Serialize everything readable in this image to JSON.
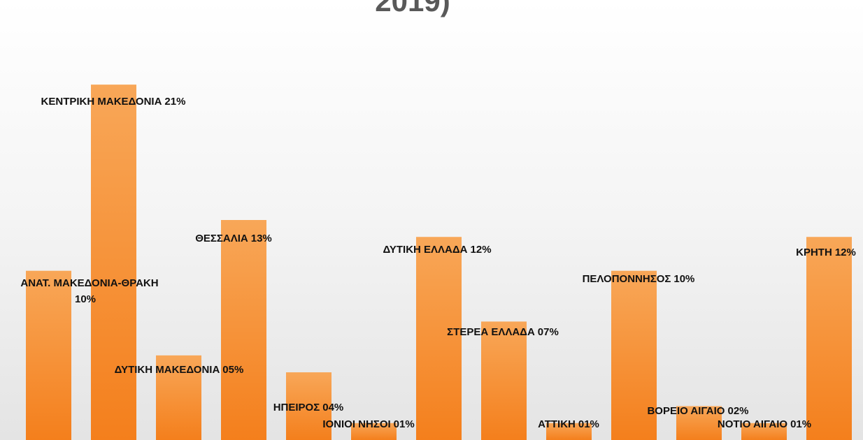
{
  "chart_data": {
    "type": "bar",
    "title": "2019)",
    "categories": [
      "ΑΝΑΤ. ΜΑΚΕΔΟΝΙΑ-ΘΡΑΚΗ",
      "ΚΕΝΤΡΙΚΗ ΜΑΚΕΔΟΝΙΑ",
      "ΔΥΤΙΚΗ ΜΑΚΕΔΟΝΙΑ",
      "ΘΕΣΣΑΛΙΑ",
      "ΗΠΕΙΡΟΣ",
      "ΙΟΝΙΟΙ ΝΗΣΟΙ",
      "ΔΥΤΙΚΗ ΕΛΛΑΔΑ",
      "ΣΤΕΡΕΑ ΕΛΛΑΔΑ",
      "ΑΤΤΙΚΗ",
      "ΠΕΛΟΠΟΝΝΗΣΟΣ",
      "ΒΟΡΕΙΟ ΑΙΓΑΙΟ",
      "ΝΟΤΙΟ ΑΙΓΑΙΟ",
      "ΚΡΗΤΗ"
    ],
    "values": [
      10,
      21,
      5,
      13,
      4,
      1,
      12,
      7,
      1,
      10,
      2,
      1,
      12
    ],
    "value_labels": [
      "10%",
      "21%",
      "05%",
      "13%",
      "04%",
      "01%",
      "12%",
      "07%",
      "01%",
      "10%",
      "02%",
      "01%",
      "12%"
    ],
    "color": "#f58a2c",
    "ylim": [
      0,
      26
    ]
  }
}
